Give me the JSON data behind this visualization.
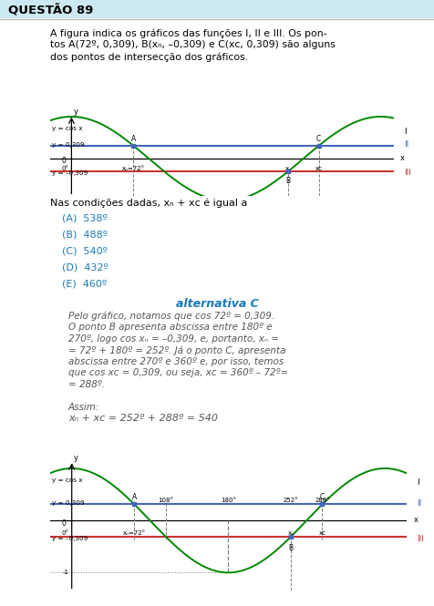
{
  "title": "QUESTÃO 89",
  "bg_color": "#ffffff",
  "header_bg": "#cce8f0",
  "blue_color": "#1a7ab5",
  "dark_color": "#333333",
  "green_color": "#008800",
  "red_line_color": "#cc3333",
  "blue_line_color": "#4466bb",
  "problem_line1": "A figura indica os gráficos das funções I, II e III. Os pon-",
  "problem_line2": "tos A(72º, 0,309), B(xₙ, –0,309) e C(xᴄ, 0,309) são alguns",
  "problem_line3": "dos pontos de intersecção dos gráficos.",
  "question": "Nas condições dadas, xₙ + xᴄ é igual a",
  "opt_A": "(A)  538º",
  "opt_B": "(B)  488º",
  "opt_C": "(C)  540º",
  "opt_D": "(D)  432º",
  "opt_E": "(E)  460º",
  "alt_label": "alternativa C",
  "sol1": "Pelo gráfico, notamos que cos 72º = 0,309.",
  "sol2": "O ponto B apresenta abscissa entre 180º e",
  "sol3": "270º, logo cos xₙ = –0,309, e, portanto, xₙ =",
  "sol4": "= 72º + 180º = 252º. Já o ponto C, apresenta",
  "sol5": "abscissa entre 270º e 360º e, por isso, temos",
  "sol6": "que cos xᴄ = 0,309, ou seja, xᴄ = 360º – 72º=",
  "sol7": "= 288º.",
  "assim": "Assim:",
  "formula": "xₙ + xᴄ = 252º + 288º = 540"
}
